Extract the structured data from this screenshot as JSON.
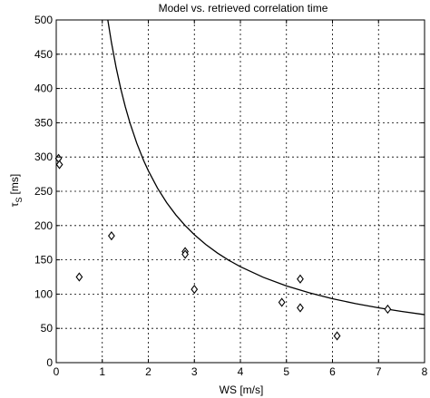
{
  "chart_data": {
    "type": "scatter",
    "title": "Model vs. retrieved correlation time",
    "xlabel": "WS [m/s]",
    "ylabel": {
      "main": "τ",
      "sub": "S",
      "unit": "[ms]"
    },
    "xlim": [
      0,
      8
    ],
    "ylim": [
      0,
      500
    ],
    "xticks": [
      0,
      1,
      2,
      3,
      4,
      5,
      6,
      7,
      8
    ],
    "yticks": [
      0,
      50,
      100,
      150,
      200,
      250,
      300,
      350,
      400,
      450,
      500
    ],
    "grid": true,
    "series": [
      {
        "type": "scatter",
        "marker": "diamond",
        "points": [
          {
            "x": 0.05,
            "y": 298
          },
          {
            "x": 0.07,
            "y": 289
          },
          {
            "x": 0.5,
            "y": 125
          },
          {
            "x": 1.2,
            "y": 185
          },
          {
            "x": 2.8,
            "y": 162
          },
          {
            "x": 2.8,
            "y": 158
          },
          {
            "x": 3.0,
            "y": 107
          },
          {
            "x": 4.9,
            "y": 88
          },
          {
            "x": 5.3,
            "y": 122
          },
          {
            "x": 5.3,
            "y": 80
          },
          {
            "x": 6.1,
            "y": 39
          },
          {
            "x": 7.2,
            "y": 78
          }
        ]
      },
      {
        "type": "line",
        "model": "y = 560 / x",
        "points": [
          {
            "x": 1.12,
            "y": 500
          },
          {
            "x": 1.2,
            "y": 466.7
          },
          {
            "x": 1.3,
            "y": 430.8
          },
          {
            "x": 1.4,
            "y": 400
          },
          {
            "x": 1.5,
            "y": 373.3
          },
          {
            "x": 1.6,
            "y": 350
          },
          {
            "x": 1.75,
            "y": 320
          },
          {
            "x": 1.9,
            "y": 294.7
          },
          {
            "x": 2.0,
            "y": 280
          },
          {
            "x": 2.2,
            "y": 254.5
          },
          {
            "x": 2.4,
            "y": 233.3
          },
          {
            "x": 2.6,
            "y": 215.4
          },
          {
            "x": 2.8,
            "y": 200
          },
          {
            "x": 3.0,
            "y": 186.7
          },
          {
            "x": 3.25,
            "y": 172.3
          },
          {
            "x": 3.5,
            "y": 160
          },
          {
            "x": 3.75,
            "y": 149.3
          },
          {
            "x": 4.0,
            "y": 140
          },
          {
            "x": 4.5,
            "y": 124.4
          },
          {
            "x": 5.0,
            "y": 112
          },
          {
            "x": 5.5,
            "y": 101.8
          },
          {
            "x": 6.0,
            "y": 93.3
          },
          {
            "x": 6.5,
            "y": 86.2
          },
          {
            "x": 7.0,
            "y": 80
          },
          {
            "x": 7.5,
            "y": 74.7
          },
          {
            "x": 8.0,
            "y": 70
          }
        ]
      }
    ]
  }
}
